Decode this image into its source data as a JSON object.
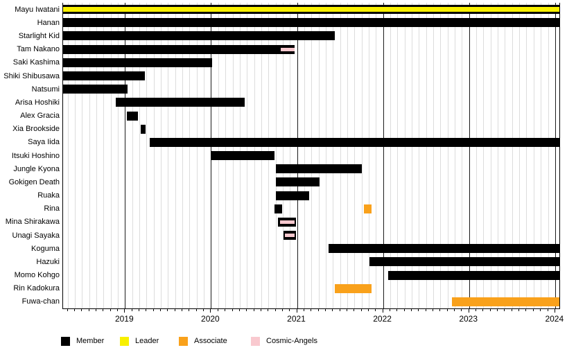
{
  "chart_data": {
    "type": "bar",
    "subtype": "gantt-timeline",
    "title": "",
    "x_axis": {
      "start": 2018.28,
      "end": 2024.05,
      "ticks": [
        {
          "label": "2019",
          "value": 2019
        },
        {
          "label": "2020",
          "value": 2020
        },
        {
          "label": "2021",
          "value": 2021
        },
        {
          "label": "2022",
          "value": 2022
        },
        {
          "label": "2023",
          "value": 2023
        },
        {
          "label": "2024",
          "value": 2024
        }
      ],
      "minor_tick_interval_years": 0.0833
    },
    "grid": {
      "month_line_color": "#dcdcdc",
      "year_line_color": "#1a1a1a"
    },
    "legend": [
      {
        "label": "Member",
        "color": "#000000"
      },
      {
        "label": "Leader",
        "color": "#f8f000"
      },
      {
        "label": "Associate",
        "color": "#f9a11b"
      },
      {
        "label": "Cosmic-Angels",
        "color": "#f9c9cf"
      }
    ],
    "rows": [
      {
        "name": "Mayu Iwatani",
        "bars": [
          {
            "role": "Member",
            "start": 2018.28,
            "end": 2024.05
          },
          {
            "role": "Leader",
            "start": 2018.28,
            "end": 2024.05,
            "overlay": true
          }
        ]
      },
      {
        "name": "Hanan",
        "bars": [
          {
            "role": "Member",
            "start": 2018.28,
            "end": 2024.05
          }
        ]
      },
      {
        "name": "Starlight Kid",
        "bars": [
          {
            "role": "Member",
            "start": 2018.28,
            "end": 2021.44
          }
        ]
      },
      {
        "name": "Tam Nakano",
        "bars": [
          {
            "role": "Member",
            "start": 2018.28,
            "end": 2020.97
          },
          {
            "role": "Cosmic-Angels",
            "start": 2020.81,
            "end": 2020.97,
            "overlay": true
          }
        ]
      },
      {
        "name": "Saki Kashima",
        "bars": [
          {
            "role": "Member",
            "start": 2018.28,
            "end": 2020.01
          }
        ]
      },
      {
        "name": "Shiki Shibusawa",
        "bars": [
          {
            "role": "Member",
            "start": 2018.28,
            "end": 2019.23
          }
        ]
      },
      {
        "name": "Natsumi",
        "bars": [
          {
            "role": "Member",
            "start": 2018.28,
            "end": 2019.03
          }
        ]
      },
      {
        "name": "Arisa Hoshiki",
        "bars": [
          {
            "role": "Member",
            "start": 2018.89,
            "end": 2020.39
          }
        ]
      },
      {
        "name": "Alex Gracia",
        "bars": [
          {
            "role": "Member",
            "start": 2019.02,
            "end": 2019.15
          }
        ]
      },
      {
        "name": "Xia Brookside",
        "bars": [
          {
            "role": "Member",
            "start": 2019.18,
            "end": 2019.24
          }
        ]
      },
      {
        "name": "Saya Iida",
        "bars": [
          {
            "role": "Member",
            "start": 2019.29,
            "end": 2024.05
          }
        ]
      },
      {
        "name": "Itsuki Hoshino",
        "bars": [
          {
            "role": "Member",
            "start": 2020.0,
            "end": 2020.74
          }
        ]
      },
      {
        "name": "Jungle Kyona",
        "bars": [
          {
            "role": "Member",
            "start": 2020.75,
            "end": 2021.75
          }
        ]
      },
      {
        "name": "Gokigen Death",
        "bars": [
          {
            "role": "Member",
            "start": 2020.75,
            "end": 2021.26
          }
        ]
      },
      {
        "name": "Ruaka",
        "bars": [
          {
            "role": "Member",
            "start": 2020.75,
            "end": 2021.14
          }
        ]
      },
      {
        "name": "Rina",
        "bars": [
          {
            "role": "Member",
            "start": 2020.74,
            "end": 2020.83
          },
          {
            "role": "Associate",
            "start": 2021.78,
            "end": 2021.87
          }
        ]
      },
      {
        "name": "Mina Shirakawa",
        "bars": [
          {
            "role": "Member",
            "start": 2020.78,
            "end": 2020.99
          },
          {
            "role": "Cosmic-Angels",
            "start": 2020.8,
            "end": 2020.97,
            "overlay": true
          }
        ]
      },
      {
        "name": "Unagi Sayaka",
        "bars": [
          {
            "role": "Member",
            "start": 2020.84,
            "end": 2020.99
          },
          {
            "role": "Cosmic-Angels",
            "start": 2020.86,
            "end": 2020.97,
            "overlay": true
          }
        ]
      },
      {
        "name": "Koguma",
        "bars": [
          {
            "role": "Member",
            "start": 2021.37,
            "end": 2024.05
          }
        ]
      },
      {
        "name": "Hazuki",
        "bars": [
          {
            "role": "Member",
            "start": 2021.84,
            "end": 2024.05
          }
        ]
      },
      {
        "name": "Momo Kohgo",
        "bars": [
          {
            "role": "Member",
            "start": 2022.06,
            "end": 2024.05
          }
        ]
      },
      {
        "name": "Rin Kadokura",
        "bars": [
          {
            "role": "Associate",
            "start": 2021.44,
            "end": 2021.87
          }
        ]
      },
      {
        "name": "Fuwa-chan",
        "bars": [
          {
            "role": "Associate",
            "start": 2022.8,
            "end": 2024.05
          }
        ]
      }
    ]
  },
  "legend_layout_x": [
    88,
    173,
    258,
    362
  ]
}
